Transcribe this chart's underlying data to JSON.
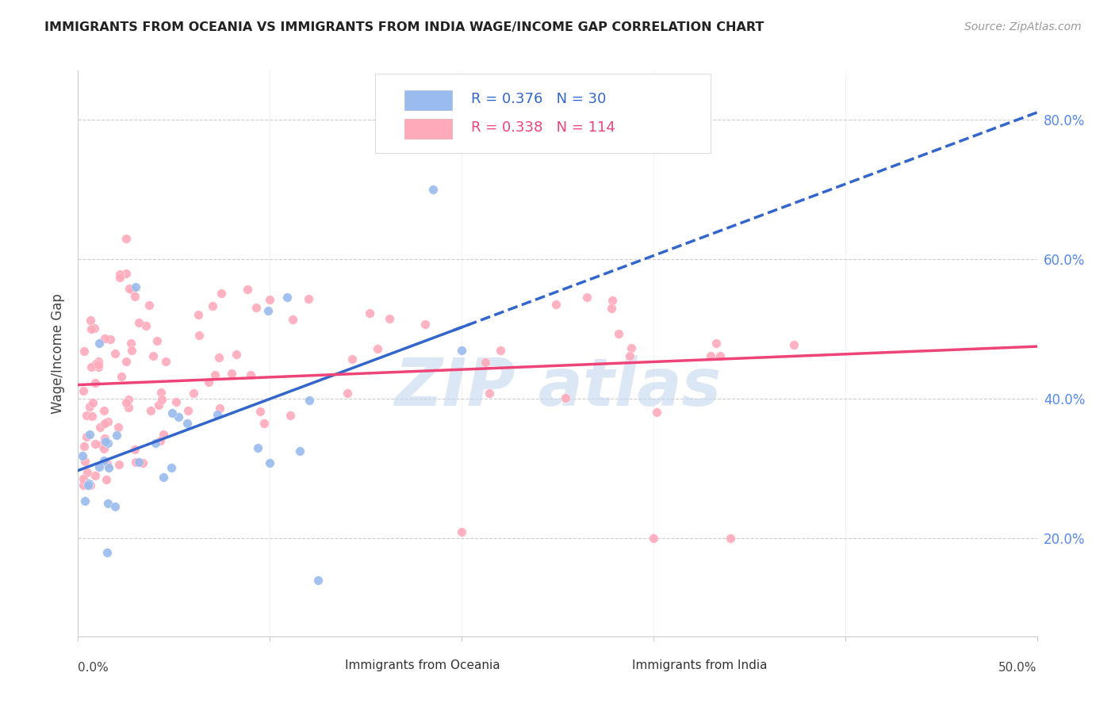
{
  "title": "IMMIGRANTS FROM OCEANIA VS IMMIGRANTS FROM INDIA WAGE/INCOME GAP CORRELATION CHART",
  "source": "Source: ZipAtlas.com",
  "ylabel": "Wage/Income Gap",
  "xmin": 0.0,
  "xmax": 0.5,
  "ymin": 0.06,
  "ymax": 0.87,
  "right_yticks": [
    0.2,
    0.4,
    0.6,
    0.8
  ],
  "oceania_color": "#99bbee",
  "india_color": "#ffaabb",
  "oceania_line_color": "#3366cc",
  "india_line_color": "#ee4477",
  "oceania_R": 0.376,
  "oceania_N": 30,
  "india_R": 0.338,
  "india_N": 114,
  "watermark_text": "ZIP atlas",
  "watermark_color": "#c5d8f0",
  "bottom_label_oceania": "Immigrants from Oceania",
  "bottom_label_india": "Immigrants from India",
  "legend_r1": "R = 0.376   N = 30",
  "legend_r2": "R = 0.338   N = 114",
  "legend_color1": "#3366cc",
  "legend_color2": "#ee4477"
}
